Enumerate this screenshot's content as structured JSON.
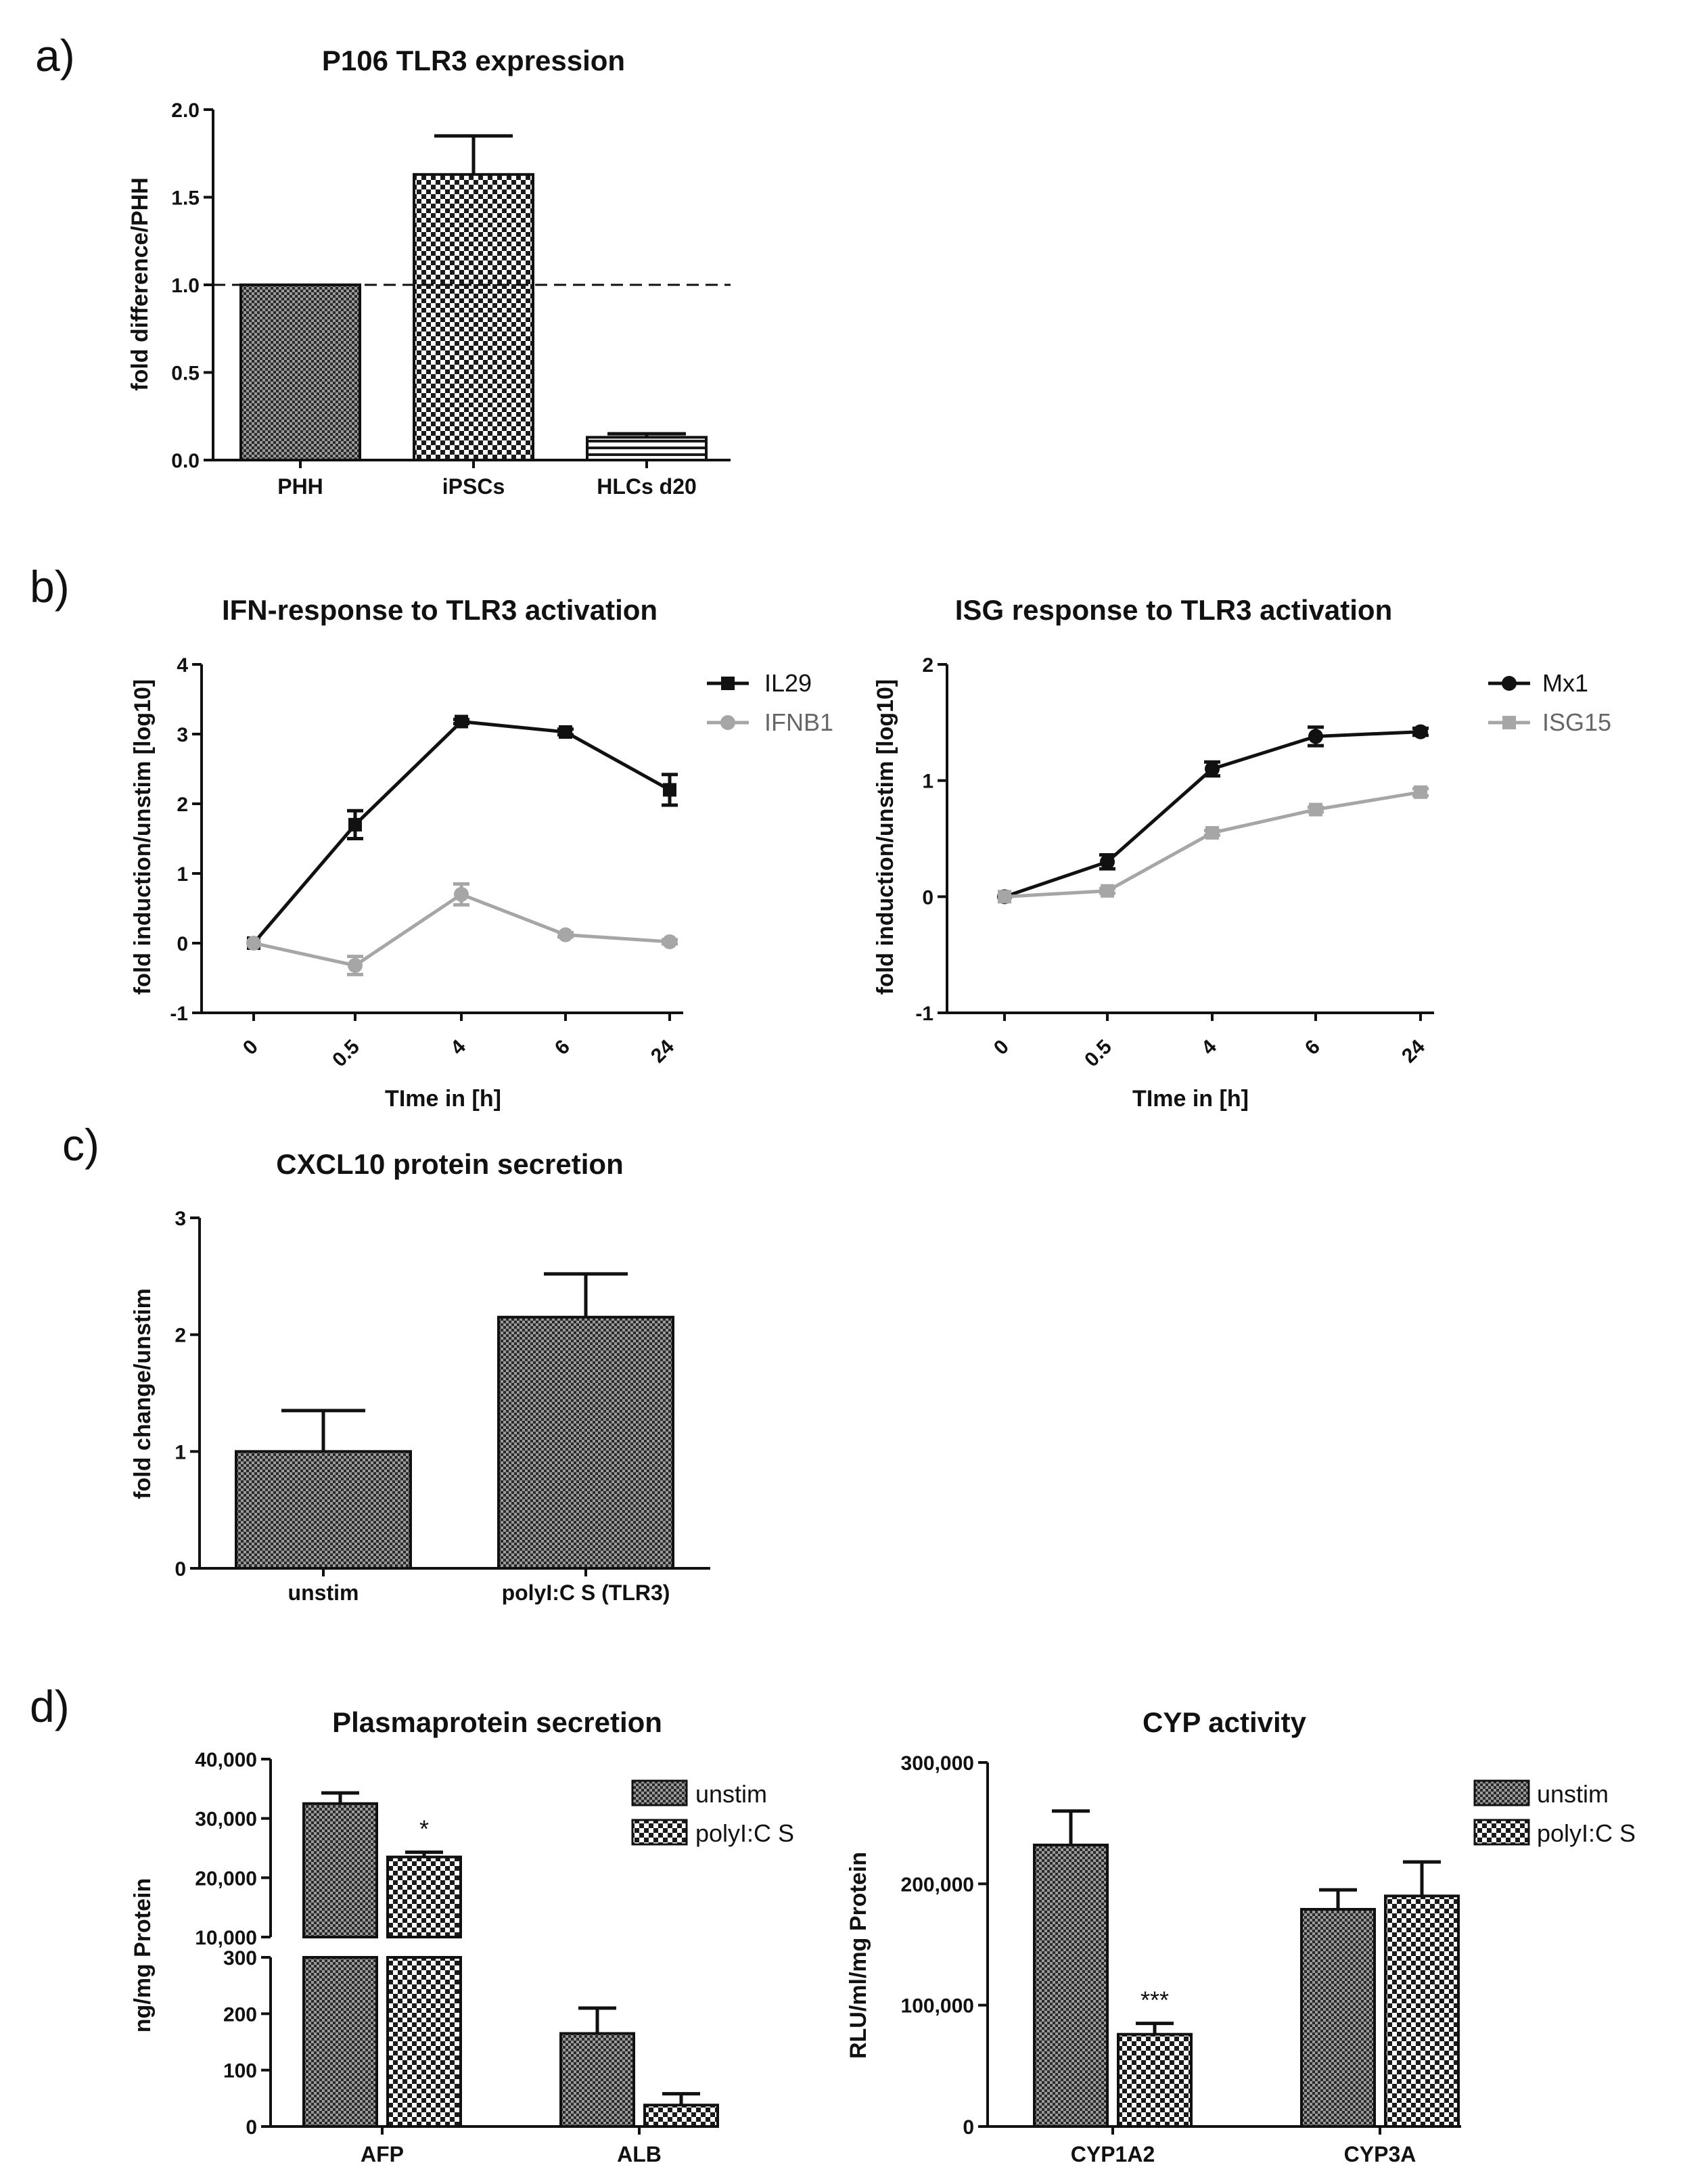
{
  "panel_labels": [
    "a)",
    "b)",
    "c)",
    "d)"
  ],
  "chart_data": [
    {
      "id": "a",
      "type": "bar",
      "title": "P106 TLR3 expression",
      "ylabel": "fold difference/PHH",
      "xlabel": "",
      "categories": [
        "PHH",
        "iPSCs",
        "HLCs d20"
      ],
      "values": [
        1.0,
        1.63,
        0.13
      ],
      "errors": [
        0.0,
        0.22,
        0.02
      ],
      "ylim": [
        0,
        2.0
      ],
      "yticks": [
        "0.0",
        "0.5",
        "1.0",
        "1.5",
        "2.0"
      ],
      "reference_line": 1.0
    },
    {
      "id": "b1",
      "type": "line",
      "title": "IFN-response to TLR3 activation",
      "ylabel": "fold induction/unstim [log10]",
      "xlabel": "TIme in [h]",
      "x": [
        "0",
        "0.5",
        "4",
        "6",
        "24"
      ],
      "ylim": [
        -1,
        4
      ],
      "yticks": [
        "-1",
        "0",
        "1",
        "2",
        "3",
        "4"
      ],
      "series": [
        {
          "name": "IL29",
          "color": "#111111",
          "marker": "square",
          "values": [
            0,
            1.7,
            3.18,
            3.03,
            2.2
          ],
          "errors": [
            0,
            0.2,
            0.03,
            0.04,
            0.22
          ]
        },
        {
          "name": "IFNB1",
          "color": "#a6a6a6",
          "marker": "circle",
          "values": [
            0,
            -0.32,
            0.7,
            0.12,
            0.02
          ],
          "errors": [
            0,
            0.13,
            0.15,
            0.03,
            0.03
          ]
        }
      ]
    },
    {
      "id": "b2",
      "type": "line",
      "title": "ISG response to TLR3 activation",
      "ylabel": "fold induction/unstim [log10]",
      "xlabel": "TIme in [h]",
      "x": [
        "0",
        "0.5",
        "4",
        "6",
        "24"
      ],
      "ylim": [
        -1,
        2
      ],
      "yticks": [
        "-1",
        "0",
        "1",
        "2"
      ],
      "series": [
        {
          "name": "Mx1",
          "color": "#111111",
          "marker": "circle",
          "values": [
            0,
            0.3,
            1.1,
            1.38,
            1.42
          ],
          "errors": [
            0,
            0.06,
            0.06,
            0.08,
            0.03
          ]
        },
        {
          "name": "ISG15",
          "color": "#a6a6a6",
          "marker": "square",
          "values": [
            0,
            0.05,
            0.55,
            0.75,
            0.9
          ],
          "errors": [
            0,
            0.02,
            0.02,
            0.02,
            0.03
          ]
        }
      ]
    },
    {
      "id": "c",
      "type": "bar",
      "title": "CXCL10 protein secretion",
      "ylabel": "fold change/unstim",
      "xlabel": "",
      "categories": [
        "unstim",
        "polyI:C S (TLR3)"
      ],
      "values": [
        1.0,
        2.15
      ],
      "errors": [
        0.35,
        0.37
      ],
      "ylim": [
        0,
        3
      ],
      "yticks": [
        "0",
        "1",
        "2",
        "3"
      ]
    },
    {
      "id": "d1",
      "type": "bar",
      "title": "Plasmaprotein secretion",
      "ylabel": "ng/mg Protein",
      "xlabel": "",
      "categories": [
        "AFP",
        "ALB"
      ],
      "series": [
        {
          "name": "unstim",
          "values": [
            32500,
            165
          ],
          "errors": [
            1800,
            45
          ]
        },
        {
          "name": "polyI:C S",
          "values": [
            23500,
            38
          ],
          "errors": [
            800,
            20
          ]
        }
      ],
      "significance": [
        "*",
        ""
      ],
      "axis_break": {
        "lower": [
          0,
          300
        ],
        "upper": [
          10000,
          40000
        ]
      },
      "yticks_lower": [
        "0",
        "100",
        "200",
        "300"
      ],
      "yticks_upper": [
        "10,000",
        "20,000",
        "30,000",
        "40,000"
      ]
    },
    {
      "id": "d2",
      "type": "bar",
      "title": "CYP activity",
      "ylabel": "RLU/ml/mg Protein",
      "xlabel": "",
      "categories": [
        "CYP1A2",
        "CYP3A"
      ],
      "series": [
        {
          "name": "unstim",
          "values": [
            232000,
            179000
          ],
          "errors": [
            28000,
            16000
          ]
        },
        {
          "name": "polyI:C S",
          "values": [
            76000,
            190000
          ],
          "errors": [
            9000,
            28000
          ]
        }
      ],
      "significance": [
        "***",
        ""
      ],
      "ylim": [
        0,
        300000
      ],
      "yticks": [
        "0",
        "100,000",
        "200,000",
        "300,000"
      ]
    }
  ]
}
